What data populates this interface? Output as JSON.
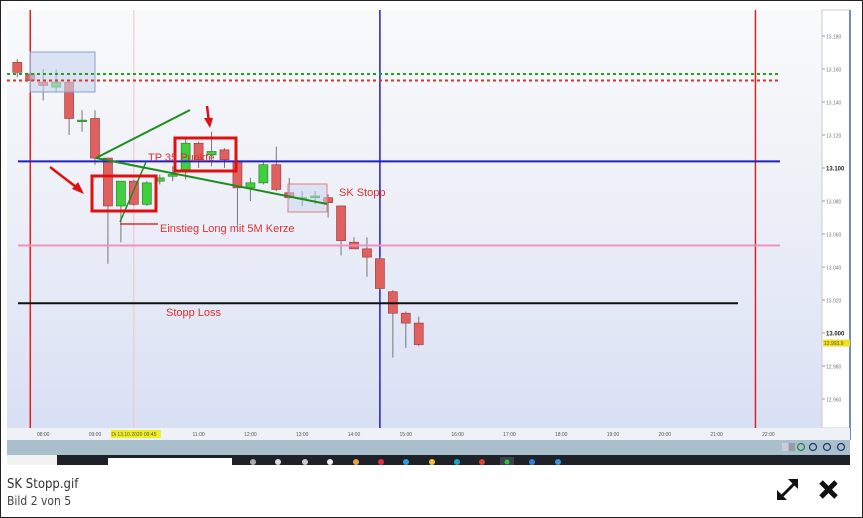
{
  "viewer": {
    "file_name": "SK Stopp.gif",
    "counter": "Bild 2 von 5",
    "expand_icon": "expand-arrows-icon",
    "close_icon": "close-x-icon"
  },
  "chart_data": {
    "type": "candlestick",
    "title": "",
    "xlabel": "",
    "ylabel": "",
    "interval": "15 min",
    "ylim": [
      12.95,
      13.185
    ],
    "y_ticks": [
      "13.180",
      "13.160",
      "13.140",
      "13.120",
      "13.100",
      "13.080",
      "13.060",
      "13.040",
      "13.020",
      "13.000",
      "12.980",
      "12.960"
    ],
    "current_price_label": "12.993,9",
    "x_ticks": [
      "08:00",
      "09:00",
      "Di 13.10.2020 09:45",
      "11:00",
      "12:00",
      "13:00",
      "14:00",
      "15:00",
      "16:00",
      "17:00",
      "18:00",
      "19:00",
      "20:00",
      "21:00",
      "22:00"
    ],
    "grid": false,
    "colors": {
      "up": "#3fcf3f",
      "down": "#e06060",
      "frame_red": "#e02020",
      "blue": "#2020c8",
      "pink": "#f090c0",
      "black": "#111111",
      "green_line": "#1e8c1e"
    },
    "candles": [
      {
        "t": "07:30",
        "o": 13.164,
        "h": 13.166,
        "l": 13.155,
        "c": 13.158
      },
      {
        "t": "07:45",
        "o": 13.157,
        "h": 13.158,
        "l": 13.151,
        "c": 13.153
      },
      {
        "t": "08:00",
        "o": 13.152,
        "h": 13.16,
        "l": 13.141,
        "c": 13.15
      },
      {
        "t": "08:15",
        "o": 13.149,
        "h": 13.16,
        "l": 13.146,
        "c": 13.152
      },
      {
        "t": "08:30",
        "o": 13.152,
        "h": 13.152,
        "l": 13.12,
        "c": 13.13
      },
      {
        "t": "08:45",
        "o": 13.129,
        "h": 13.135,
        "l": 13.122,
        "c": 13.129
      },
      {
        "t": "09:00",
        "o": 13.13,
        "h": 13.135,
        "l": 13.102,
        "c": 13.106
      },
      {
        "t": "09:15",
        "o": 13.106,
        "h": 13.106,
        "l": 13.042,
        "c": 13.077
      },
      {
        "t": "09:30",
        "o": 13.077,
        "h": 13.092,
        "l": 13.055,
        "c": 13.092
      },
      {
        "t": "09:45",
        "o": 13.092,
        "h": 13.093,
        "l": 13.077,
        "c": 13.078
      },
      {
        "t": "10:00",
        "o": 13.078,
        "h": 13.092,
        "l": 13.077,
        "c": 13.091
      },
      {
        "t": "10:15",
        "o": 13.092,
        "h": 13.096,
        "l": 13.09,
        "c": 13.094
      },
      {
        "t": "10:30",
        "o": 13.095,
        "h": 13.101,
        "l": 13.092,
        "c": 13.096
      },
      {
        "t": "10:45",
        "o": 13.099,
        "h": 13.119,
        "l": 13.093,
        "c": 13.115
      },
      {
        "t": "11:00",
        "o": 13.115,
        "h": 13.116,
        "l": 13.1,
        "c": 13.105
      },
      {
        "t": "11:15",
        "o": 13.108,
        "h": 13.122,
        "l": 13.101,
        "c": 13.11
      },
      {
        "t": "11:30",
        "o": 13.111,
        "h": 13.112,
        "l": 13.1,
        "c": 13.105
      },
      {
        "t": "11:45",
        "o": 13.104,
        "h": 13.105,
        "l": 13.065,
        "c": 13.088
      },
      {
        "t": "12:00",
        "o": 13.088,
        "h": 13.094,
        "l": 13.08,
        "c": 13.091
      },
      {
        "t": "12:15",
        "o": 13.091,
        "h": 13.104,
        "l": 13.09,
        "c": 13.102
      },
      {
        "t": "12:30",
        "o": 13.102,
        "h": 13.113,
        "l": 13.086,
        "c": 13.087
      },
      {
        "t": "12:45",
        "o": 13.085,
        "h": 13.094,
        "l": 13.081,
        "c": 13.082
      },
      {
        "t": "13:00",
        "o": 13.082,
        "h": 13.086,
        "l": 13.077,
        "c": 13.082
      },
      {
        "t": "13:15",
        "o": 13.082,
        "h": 13.086,
        "l": 13.078,
        "c": 13.083
      },
      {
        "t": "13:30",
        "o": 13.082,
        "h": 13.084,
        "l": 13.07,
        "c": 13.079
      },
      {
        "t": "13:45",
        "o": 13.077,
        "h": 13.077,
        "l": 13.047,
        "c": 13.056
      },
      {
        "t": "14:00",
        "o": 13.055,
        "h": 13.058,
        "l": 13.052,
        "c": 13.051
      },
      {
        "t": "14:15",
        "o": 13.051,
        "h": 13.058,
        "l": 13.034,
        "c": 13.046
      },
      {
        "t": "14:30",
        "o": 13.045,
        "h": 13.046,
        "l": 13.026,
        "c": 13.027
      },
      {
        "t": "14:45",
        "o": 13.025,
        "h": 13.026,
        "l": 12.985,
        "c": 13.012
      },
      {
        "t": "15:00",
        "o": 13.012,
        "h": 13.013,
        "l": 12.991,
        "c": 13.006
      },
      {
        "t": "15:15",
        "o": 13.006,
        "h": 13.01,
        "l": 12.992,
        "c": 12.993
      }
    ],
    "horizontal_lines": [
      {
        "price": 13.157,
        "color": "#22a022",
        "style": "dotted"
      },
      {
        "price": 13.153,
        "color": "#e03030",
        "style": "dotted"
      },
      {
        "price": 13.104,
        "color": "#2020c8",
        "style": "solid"
      },
      {
        "price": 13.053,
        "color": "#f090c0",
        "style": "solid"
      },
      {
        "price": 13.018,
        "color": "#111111",
        "style": "solid"
      }
    ],
    "vertical_lines": [
      {
        "time": "07:45",
        "color": "#e02020"
      },
      {
        "time": "09:45",
        "color": "#f5c0c8"
      },
      {
        "time": "14:30",
        "color": "#2020c8"
      },
      {
        "time": "21:45",
        "color": "#e02020"
      }
    ],
    "annotations": [
      {
        "text": "TP 35 Punkte",
        "color": "#e03030"
      },
      {
        "text": "SK Stopp",
        "color": "#e03030"
      },
      {
        "text": "Einstieg Long mit 5M Kerze",
        "color": "#e03030"
      },
      {
        "text": "Stopp Loss",
        "color": "#e03030"
      }
    ]
  }
}
